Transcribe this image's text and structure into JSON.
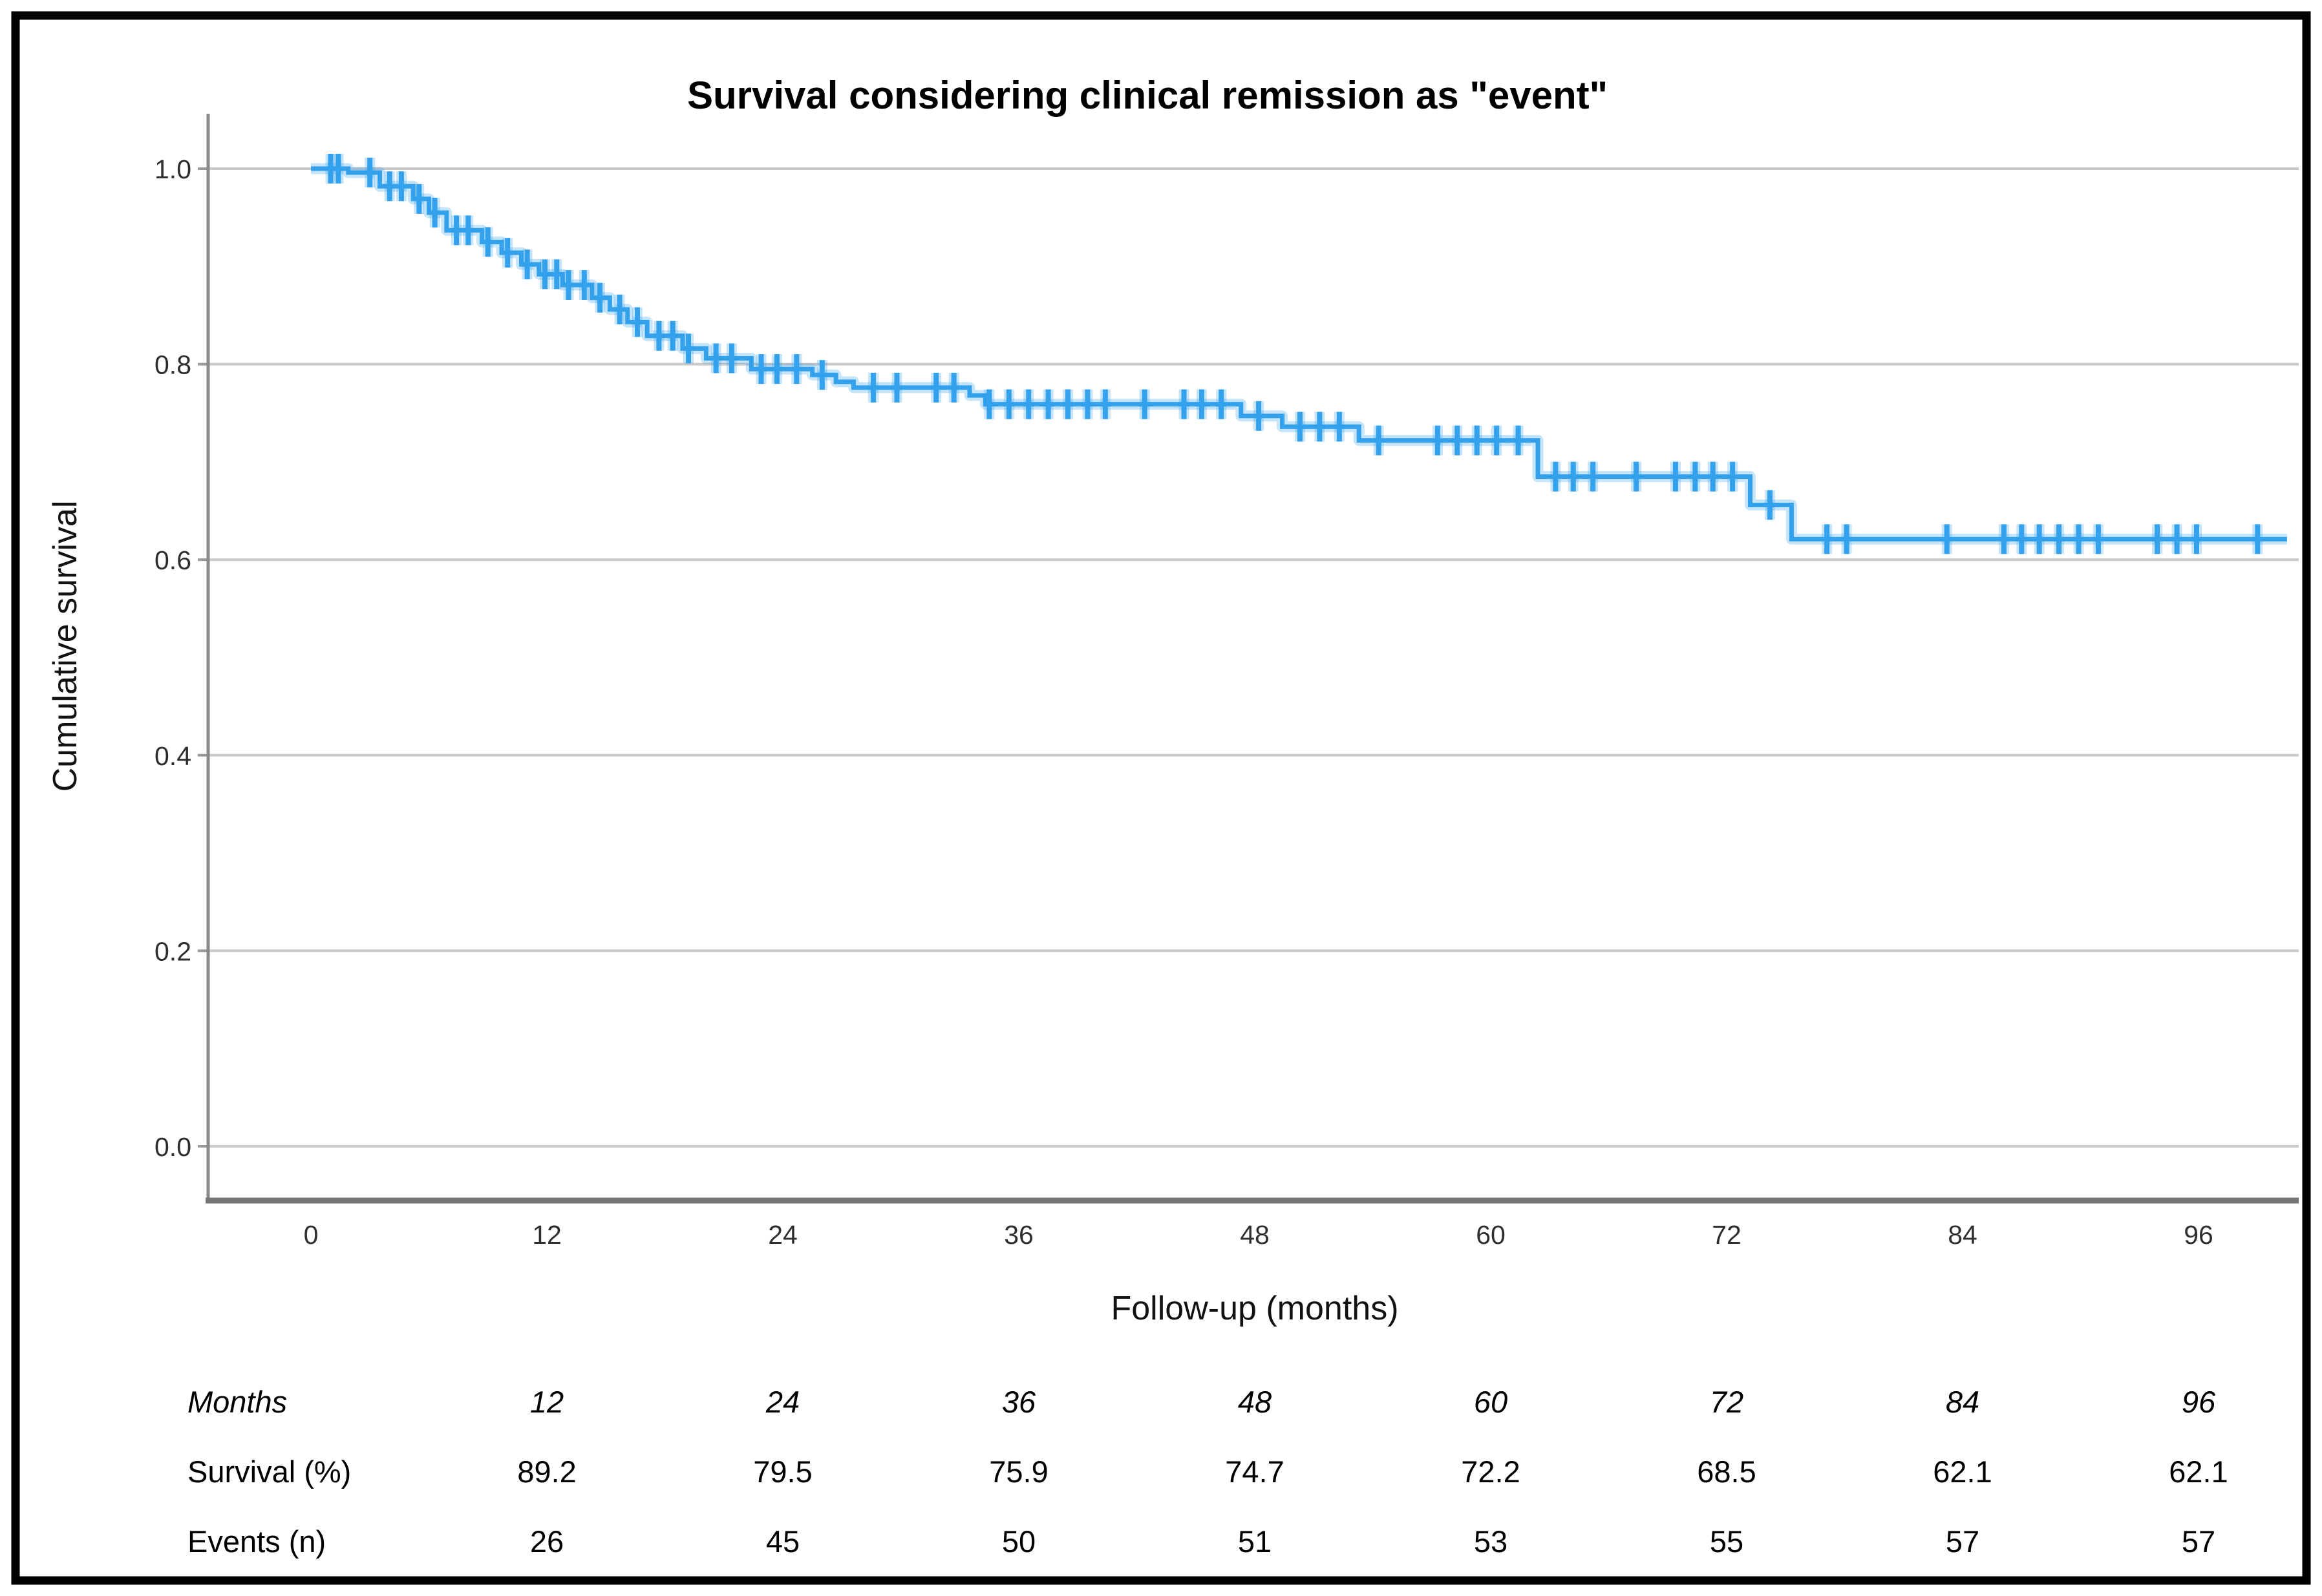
{
  "figure": {
    "title": "Survival considering clinical remission as \"event\"",
    "x_axis": {
      "label": "Follow-up (months)"
    },
    "y_axis": {
      "label": "Cumulative survival"
    }
  },
  "chart_data": {
    "type": "line",
    "subtype": "kaplan-meier-step",
    "title": "Survival considering clinical remission as \"event\"",
    "xlabel": "Follow-up (months)",
    "ylabel": "Cumulative survival",
    "xlim": [
      0,
      100.5
    ],
    "ylim": [
      0.0,
      1.0
    ],
    "grid": "horizontal-only",
    "legend": "none",
    "x_ticks": [
      0,
      12,
      24,
      36,
      48,
      60,
      72,
      84,
      96
    ],
    "y_ticks": [
      {
        "value": 1.0,
        "label": "1.0"
      },
      {
        "value": 0.8,
        "label": "0.8"
      },
      {
        "value": 0.6,
        "label": "0.6"
      },
      {
        "value": 0.4,
        "label": "0.4"
      },
      {
        "value": 0.2,
        "label": "0.2"
      },
      {
        "value": 0.0,
        "label": "0.0"
      }
    ],
    "series": [
      {
        "name": "Cumulative survival",
        "color": "#33A1EC",
        "start": [
          0,
          1.0
        ],
        "end_time": 100.5,
        "steps": [
          [
            1.9,
            0.996
          ],
          [
            3.5,
            0.982
          ],
          [
            5.2,
            0.969
          ],
          [
            6.0,
            0.955
          ],
          [
            6.9,
            0.937
          ],
          [
            8.7,
            0.925
          ],
          [
            9.7,
            0.914
          ],
          [
            10.7,
            0.902
          ],
          [
            11.6,
            0.892
          ],
          [
            12.8,
            0.881
          ],
          [
            14.3,
            0.868
          ],
          [
            15.2,
            0.856
          ],
          [
            16.1,
            0.843
          ],
          [
            17.1,
            0.829
          ],
          [
            18.9,
            0.816
          ],
          [
            20.1,
            0.806
          ],
          [
            22.4,
            0.795
          ],
          [
            25.5,
            0.789
          ],
          [
            26.7,
            0.782
          ],
          [
            27.6,
            0.776
          ],
          [
            33.5,
            0.768
          ],
          [
            34.3,
            0.759
          ],
          [
            47.3,
            0.747
          ],
          [
            49.4,
            0.736
          ],
          [
            53.3,
            0.722
          ],
          [
            62.4,
            0.685
          ],
          [
            73.2,
            0.656
          ],
          [
            75.3,
            0.621
          ]
        ],
        "censor_marks": [
          [
            1.0,
            1.0
          ],
          [
            1.4,
            1.0
          ],
          [
            3.0,
            0.996
          ],
          [
            4.0,
            0.982
          ],
          [
            4.6,
            0.982
          ],
          [
            5.5,
            0.969
          ],
          [
            6.3,
            0.955
          ],
          [
            7.4,
            0.937
          ],
          [
            8.0,
            0.937
          ],
          [
            9.0,
            0.925
          ],
          [
            10.0,
            0.914
          ],
          [
            11.0,
            0.902
          ],
          [
            11.9,
            0.892
          ],
          [
            12.5,
            0.892
          ],
          [
            13.1,
            0.881
          ],
          [
            13.9,
            0.881
          ],
          [
            14.7,
            0.868
          ],
          [
            15.7,
            0.856
          ],
          [
            16.6,
            0.843
          ],
          [
            17.7,
            0.829
          ],
          [
            18.4,
            0.829
          ],
          [
            19.2,
            0.816
          ],
          [
            20.6,
            0.806
          ],
          [
            21.4,
            0.806
          ],
          [
            22.9,
            0.795
          ],
          [
            23.7,
            0.795
          ],
          [
            24.7,
            0.795
          ],
          [
            26.0,
            0.789
          ],
          [
            28.6,
            0.776
          ],
          [
            29.8,
            0.776
          ],
          [
            31.8,
            0.776
          ],
          [
            32.7,
            0.776
          ],
          [
            34.5,
            0.759
          ],
          [
            35.5,
            0.759
          ],
          [
            36.5,
            0.759
          ],
          [
            37.5,
            0.759
          ],
          [
            38.5,
            0.759
          ],
          [
            39.5,
            0.759
          ],
          [
            40.4,
            0.759
          ],
          [
            42.4,
            0.759
          ],
          [
            44.4,
            0.759
          ],
          [
            45.3,
            0.759
          ],
          [
            46.3,
            0.759
          ],
          [
            48.2,
            0.747
          ],
          [
            50.3,
            0.736
          ],
          [
            51.3,
            0.736
          ],
          [
            52.3,
            0.736
          ],
          [
            54.3,
            0.722
          ],
          [
            57.3,
            0.722
          ],
          [
            58.3,
            0.722
          ],
          [
            59.3,
            0.722
          ],
          [
            60.3,
            0.722
          ],
          [
            61.4,
            0.722
          ],
          [
            63.3,
            0.685
          ],
          [
            64.2,
            0.685
          ],
          [
            65.2,
            0.685
          ],
          [
            67.4,
            0.685
          ],
          [
            69.4,
            0.685
          ],
          [
            70.4,
            0.685
          ],
          [
            71.3,
            0.685
          ],
          [
            72.3,
            0.685
          ],
          [
            74.2,
            0.656
          ],
          [
            77.1,
            0.621
          ],
          [
            78.1,
            0.621
          ],
          [
            83.2,
            0.621
          ],
          [
            86.1,
            0.621
          ],
          [
            87.0,
            0.621
          ],
          [
            87.9,
            0.621
          ],
          [
            88.9,
            0.621
          ],
          [
            89.9,
            0.621
          ],
          [
            90.9,
            0.621
          ],
          [
            93.9,
            0.621
          ],
          [
            94.9,
            0.621
          ],
          [
            95.9,
            0.621
          ],
          [
            99.0,
            0.621
          ]
        ]
      }
    ]
  },
  "summary_table": {
    "columns": [
      12,
      24,
      36,
      48,
      60,
      72,
      84,
      96
    ],
    "rows": [
      {
        "label": "Months",
        "italic": true,
        "values": [
          "12",
          "24",
          "36",
          "48",
          "60",
          "72",
          "84",
          "96"
        ]
      },
      {
        "label": "Survival (%)",
        "italic": false,
        "values": [
          "89.2",
          "79.5",
          "75.9",
          "74.7",
          "72.2",
          "68.5",
          "62.1",
          "62.1"
        ]
      },
      {
        "label": "Events (n)",
        "italic": false,
        "values": [
          "26",
          "45",
          "50",
          "51",
          "53",
          "55",
          "57",
          "57"
        ]
      }
    ]
  },
  "colors": {
    "curve": "#33A1EC",
    "curve_halo": "rgba(51,161,236,0.28)",
    "gridline": "#c9c9c9",
    "y_axis_line": "#8a8a8a",
    "x_axis_line": "#757575",
    "tick_mark": "#9a9a9a",
    "frame_border": "#000000",
    "background": "#ffffff"
  }
}
